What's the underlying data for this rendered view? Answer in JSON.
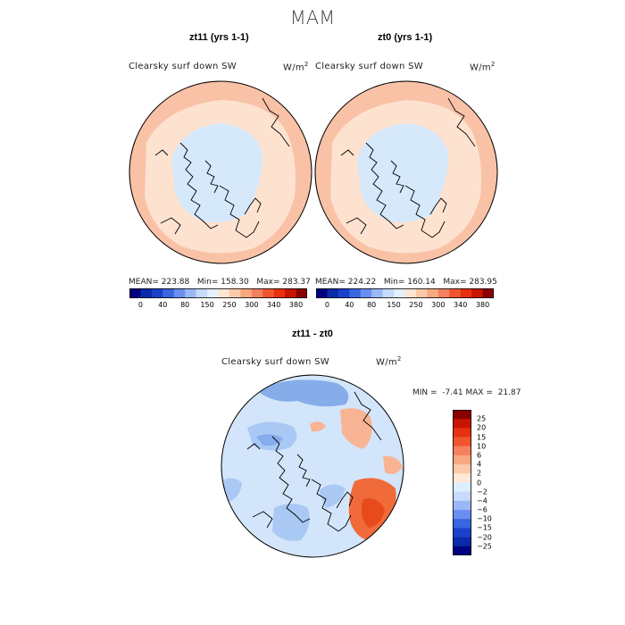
{
  "figure": {
    "title": "MAM"
  },
  "panels": [
    {
      "id": "left",
      "title": "zt11 (yrs 1-1)",
      "variable": "Clearsky surf down SW",
      "unit": "W/m",
      "unit_sup": "2",
      "mean_label": "MEAN=",
      "mean": "223.88",
      "min_label": "Min=",
      "min": "158.30",
      "max_label": "Max=",
      "max": "283.37"
    },
    {
      "id": "right",
      "title": "zt0 (yrs 1-1)",
      "variable": "Clearsky surf down SW",
      "unit": "W/m",
      "unit_sup": "2",
      "mean_label": "MEAN=",
      "mean": "224.22",
      "min_label": "Min=",
      "min": "160.14",
      "max_label": "Max=",
      "max": "283.95"
    }
  ],
  "diff": {
    "title": "zt11 - zt0",
    "variable": "Clearsky surf down SW",
    "unit": "W/m",
    "unit_sup": "2",
    "min_label": "MIN =",
    "min": "-7.41",
    "max_label": "MAX =",
    "max": "21.87"
  },
  "colorbar_abs": {
    "ticks": [
      "0",
      "40",
      "80",
      "150",
      "250",
      "300",
      "340",
      "380"
    ],
    "colors": [
      "#000080",
      "#0a2aa8",
      "#1a40cc",
      "#3a66e0",
      "#6a8ff0",
      "#9bb8f6",
      "#c6dafb",
      "#e4efff",
      "#ffe5d2",
      "#fccaaa",
      "#f8a880",
      "#f58060",
      "#f05530",
      "#e63010",
      "#c81500",
      "#8a0000"
    ]
  },
  "colorbar_diff": {
    "ticks": [
      "25",
      "20",
      "15",
      "10",
      "6",
      "4",
      "2",
      "0",
      "−2",
      "−4",
      "−6",
      "−10",
      "−15",
      "−20",
      "−25"
    ],
    "colors": [
      "#8a0000",
      "#c81500",
      "#e63010",
      "#f05530",
      "#f58060",
      "#f8a880",
      "#fccaaa",
      "#ffe8d8",
      "#ddeeff",
      "#c6dafb",
      "#9bb8f6",
      "#6a8ff0",
      "#3a66e0",
      "#1a40cc",
      "#0a2aa8",
      "#000080"
    ]
  },
  "map_colors": {
    "ring_outer": "#f9c2a7",
    "ring_mid": "#fde2d0",
    "arctic": "#d6e9fb",
    "diff_bg": "#d3e5fa",
    "diff_blue": "#a9c8f4",
    "diff_blue2": "#86adea",
    "diff_orange": "#f8b494",
    "diff_red": "#f06a3a",
    "diff_red2": "#e84a1c"
  }
}
